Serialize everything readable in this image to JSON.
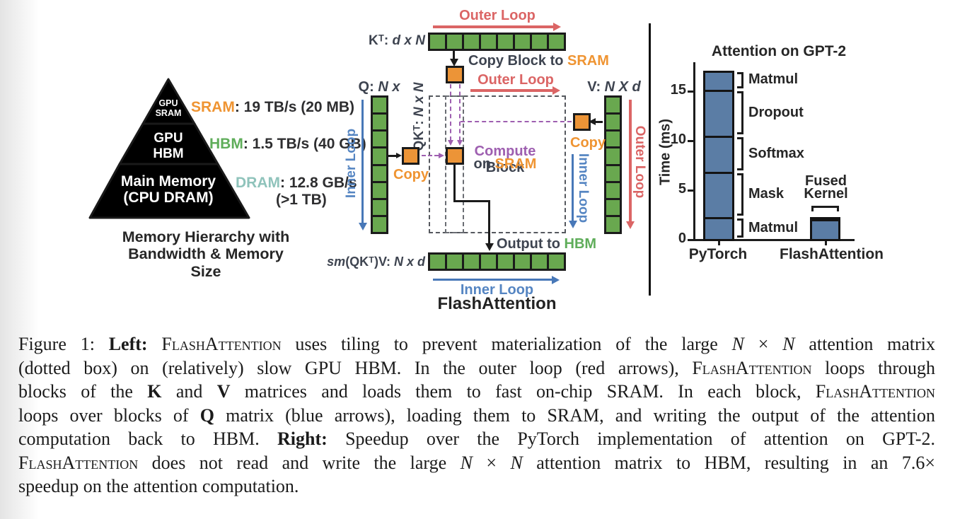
{
  "colors": {
    "orange": "#EF9432",
    "orange_block": "#EC9437",
    "green_block": "#69A84F",
    "green_pyr": "#6BA355",
    "teal_pyr": "#92C0B9",
    "teal_text": "#8FC3BB",
    "green_text": "#5FAD5A",
    "red": "#DB6565",
    "blue": "#5585C2",
    "blue_line": "#4878B8",
    "purple": "#9E5FB0",
    "slate": "#3E4450",
    "dark": "#2E2E30",
    "bar_blue": "#5B7DA5"
  },
  "pyramid": {
    "tiers": [
      {
        "name": "gpu-sram",
        "label": "GPU SRAM"
      },
      {
        "name": "gpu-hbm",
        "label": "GPU HBM"
      },
      {
        "name": "main-memory",
        "label": "Main Memory (CPU DRAM)"
      }
    ],
    "annotations": {
      "sram": [
        {
          "t": "SRAM",
          "col": "orange"
        },
        {
          "t": ": 19 TB/s (20 MB)",
          "col": "dark"
        }
      ],
      "hbm": [
        {
          "t": "HBM",
          "col": "green_text"
        },
        {
          "t": ": 1.5 TB/s (40 GB)",
          "col": "dark"
        }
      ],
      "dram_line1": [
        {
          "t": "DRAM",
          "col": "teal_text"
        },
        {
          "t": ": 12.8 GB/s",
          "col": "dark"
        }
      ],
      "dram_line2": [
        {
          "t": "(>1 TB)",
          "col": "dark"
        }
      ]
    },
    "caption_line1": "Memory Hierarchy with",
    "caption_line2": "Bandwidth & Memory Size"
  },
  "tiling": {
    "block_counts": {
      "kt": 8,
      "q": 8,
      "v": 8,
      "out": 8
    },
    "outer_loop_top": "Outer Loop",
    "outer_loop_mid": "Outer Loop",
    "outer_loop_right": "Outer Loop",
    "inner_loop_left": "Inner Loop",
    "inner_loop_right": "Inner Loop",
    "inner_loop_bottom": "Inner Loop",
    "kt_label": [
      {
        "t": "Kᵀ: "
      },
      {
        "t": "d x N",
        "i": 1
      }
    ],
    "q_label": [
      {
        "t": "Q: "
      },
      {
        "t": "N x d",
        "i": 1
      }
    ],
    "v_label": [
      {
        "t": "V: "
      },
      {
        "t": "N X d",
        "i": 1
      }
    ],
    "qkt_label": [
      {
        "t": "QKᵀ: "
      },
      {
        "t": "N x N",
        "i": 1
      }
    ],
    "out_label": [
      {
        "t": "sm",
        "i": 1
      },
      {
        "t": "(QKᵀ)V: "
      },
      {
        "t": "N x d",
        "i": 1
      }
    ],
    "copy_block_to_sram": [
      {
        "t": "Copy Block to ",
        "col": "slate"
      },
      {
        "t": "SRAM",
        "col": "orange"
      }
    ],
    "copy_q": "Copy",
    "copy_v": "Copy",
    "compute_line1": [
      {
        "t": "Compute ",
        "col": "purple"
      },
      {
        "t": "Block",
        "col": "slate"
      }
    ],
    "compute_line2": [
      {
        "t": "on ",
        "col": "slate"
      },
      {
        "t": "SRAM",
        "col": "orange"
      }
    ],
    "output_to_hbm": [
      {
        "t": "Output to ",
        "col": "slate"
      },
      {
        "t": "HBM",
        "col": "green_text"
      }
    ],
    "title": "FlashAttention"
  },
  "chart_data": {
    "type": "bar",
    "stacked": true,
    "title": "Attention on GPT-2",
    "ylabel": "Time (ms)",
    "ylim": [
      0,
      17.5
    ],
    "yticks": [
      0,
      5,
      10,
      15
    ],
    "categories": [
      "PyTorch",
      "FlashAttention"
    ],
    "series_note": "PyTorch bar is stacked by kernel; FlashAttention is a single fused kernel",
    "pytorch_segments": [
      {
        "label": "Matmul",
        "value": 2.2
      },
      {
        "label": "Mask",
        "value": 4.6
      },
      {
        "label": "Softmax",
        "value": 3.6
      },
      {
        "label": "Dropout",
        "value": 4.7
      },
      {
        "label": "Matmul",
        "value": 1.9
      }
    ],
    "pytorch_total": 17.0,
    "flashattention": {
      "label": "Fused Kernel",
      "value": 2.2
    },
    "legend_position": "none",
    "grid": false
  },
  "caption": {
    "lines": [
      [
        {
          "t": "Figure 1: "
        },
        {
          "t": "Left: ",
          "b": 1
        },
        {
          "t": "FlashAttention",
          "sc": 1
        },
        {
          "t": " uses tiling to prevent materialization of the large "
        },
        {
          "t": "N",
          "i": 1
        },
        {
          "t": " × "
        },
        {
          "t": "N",
          "i": 1
        },
        {
          "t": " attention matrix"
        }
      ],
      [
        {
          "t": "(dotted box) on (relatively) slow GPU HBM. In the outer loop (red arrows), "
        },
        {
          "t": "FlashAttention",
          "sc": 1
        },
        {
          "t": " loops through"
        }
      ],
      [
        {
          "t": "blocks of the "
        },
        {
          "t": "K",
          "b": 1
        },
        {
          "t": " and "
        },
        {
          "t": "V",
          "b": 1
        },
        {
          "t": " matrices and loads them to fast on-chip SRAM. In each block, "
        },
        {
          "t": "FlashAttention",
          "sc": 1
        }
      ],
      [
        {
          "t": "loops over blocks of "
        },
        {
          "t": "Q",
          "b": 1
        },
        {
          "t": " matrix (blue arrows), loading them to SRAM, and writing the output of the attention"
        }
      ],
      [
        {
          "t": "computation back to HBM. "
        },
        {
          "t": "Right: ",
          "b": 1
        },
        {
          "t": "Speedup over the PyTorch implementation of attention on GPT-2."
        }
      ],
      [
        {
          "t": "FlashAttention",
          "sc": 1
        },
        {
          "t": " does not read and write the large "
        },
        {
          "t": "N",
          "i": 1
        },
        {
          "t": " × "
        },
        {
          "t": "N",
          "i": 1
        },
        {
          "t": " attention matrix to HBM, resulting in an 7.6×"
        }
      ],
      [
        {
          "t": "speedup on the attention computation."
        }
      ]
    ]
  }
}
